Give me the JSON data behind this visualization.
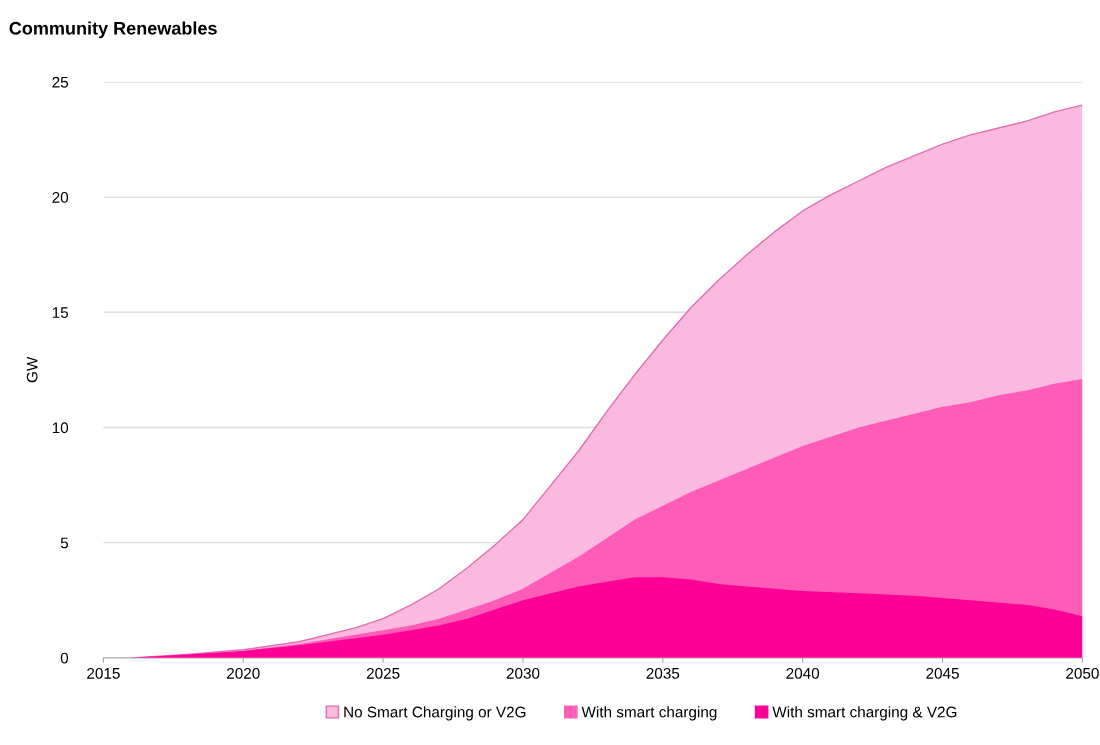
{
  "chart_data": {
    "type": "area",
    "title": "Community Renewables",
    "ylabel": "GW",
    "xlim": [
      2015,
      2050
    ],
    "xticks": [
      2015,
      2020,
      2025,
      2030,
      2035,
      2040,
      2045,
      2050
    ],
    "ylim": [
      0,
      25
    ],
    "yticks": [
      0,
      5,
      10,
      15,
      20,
      25
    ],
    "grid": "y",
    "legend": "bottom",
    "series": [
      {
        "name": "No Smart Charging or V2G",
        "color": "#fbb9e0",
        "x": [
          2016,
          2018,
          2020,
          2022,
          2024,
          2025,
          2026,
          2027,
          2028,
          2029,
          2030,
          2031,
          2032,
          2033,
          2034,
          2035,
          2036,
          2037,
          2038,
          2039,
          2040,
          2041,
          2042,
          2043,
          2044,
          2045,
          2046,
          2047,
          2048,
          2049,
          2050
        ],
        "values": [
          0,
          0.15,
          0.35,
          0.7,
          1.3,
          1.7,
          2.3,
          3.0,
          3.9,
          4.9,
          6.0,
          7.5,
          9.0,
          10.7,
          12.3,
          13.8,
          15.2,
          16.4,
          17.5,
          18.5,
          19.4,
          20.1,
          20.7,
          21.3,
          21.8,
          22.3,
          22.7,
          23.0,
          23.3,
          23.7,
          24.0
        ]
      },
      {
        "name": "With smart charging",
        "color": "#ff5cb8",
        "x": [
          2016,
          2018,
          2020,
          2022,
          2024,
          2025,
          2026,
          2027,
          2028,
          2029,
          2030,
          2031,
          2032,
          2033,
          2034,
          2035,
          2036,
          2037,
          2038,
          2039,
          2040,
          2041,
          2042,
          2043,
          2044,
          2045,
          2046,
          2047,
          2048,
          2049,
          2050
        ],
        "values": [
          0,
          0.15,
          0.3,
          0.6,
          1.0,
          1.2,
          1.4,
          1.7,
          2.1,
          2.5,
          3.0,
          3.7,
          4.4,
          5.2,
          6.0,
          6.6,
          7.2,
          7.7,
          8.2,
          8.7,
          9.2,
          9.6,
          10.0,
          10.3,
          10.6,
          10.9,
          11.1,
          11.4,
          11.6,
          11.9,
          12.1
        ]
      },
      {
        "name": "With smart charging & V2G",
        "color": "#ff0096",
        "x": [
          2016,
          2018,
          2020,
          2022,
          2024,
          2025,
          2026,
          2027,
          2028,
          2029,
          2030,
          2031,
          2032,
          2033,
          2034,
          2035,
          2036,
          2037,
          2038,
          2039,
          2040,
          2042,
          2044,
          2046,
          2048,
          2049,
          2050
        ],
        "values": [
          0,
          0.15,
          0.3,
          0.55,
          0.85,
          1.0,
          1.2,
          1.4,
          1.7,
          2.1,
          2.5,
          2.8,
          3.1,
          3.3,
          3.5,
          3.5,
          3.4,
          3.2,
          3.1,
          3.0,
          2.9,
          2.8,
          2.7,
          2.5,
          2.3,
          2.1,
          1.8
        ]
      }
    ]
  }
}
